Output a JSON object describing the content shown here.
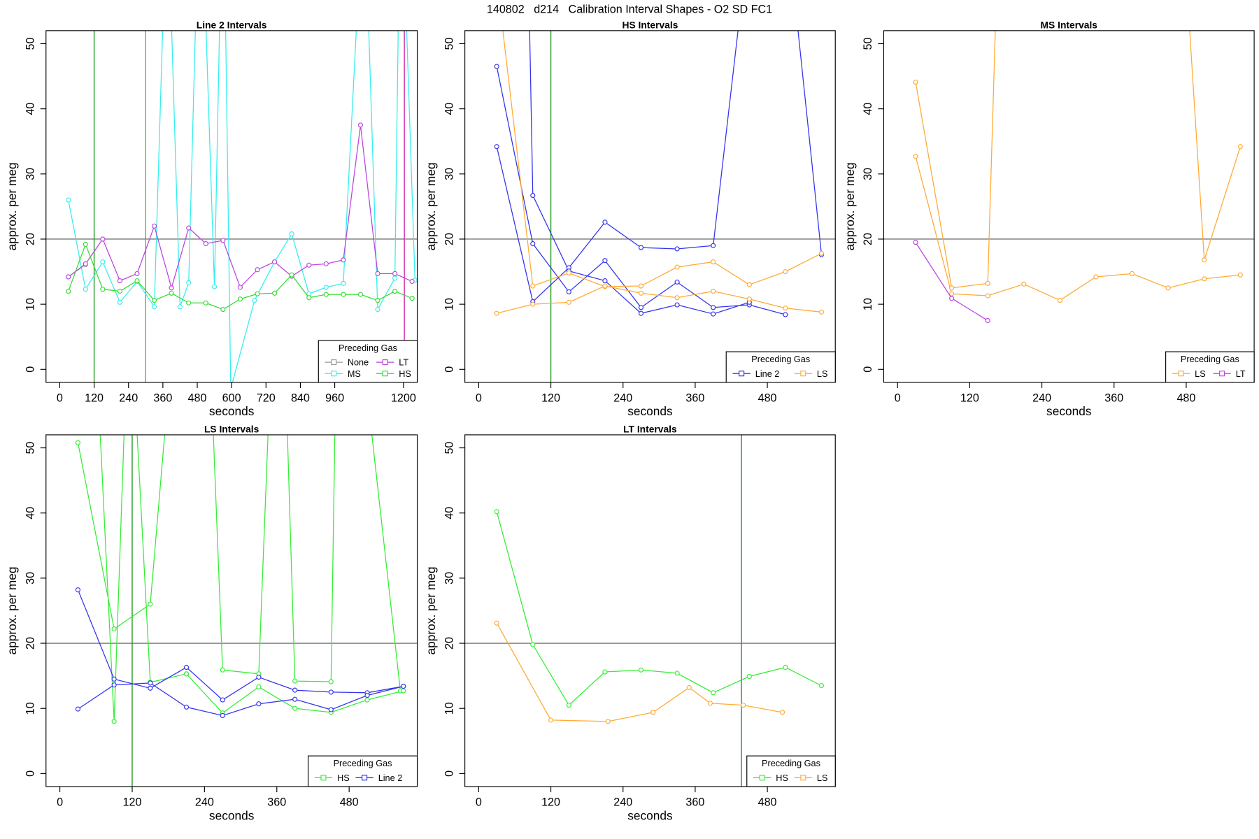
{
  "title": "140802   d214   Calibration Interval Shapes - O2 SD FC1",
  "chart_data": [
    {
      "type": "line",
      "title": "Line 2 Intervals",
      "x_label": "seconds",
      "y_label": "approx. per meg",
      "xlim": [
        -48,
        1248
      ],
      "ylim": [
        -2,
        52
      ],
      "xticks": [
        0,
        120,
        240,
        360,
        480,
        600,
        720,
        840,
        960,
        1200
      ],
      "yticks": [
        0,
        10,
        20,
        30,
        40,
        50
      ],
      "hline": 20,
      "hline_color": "#555555",
      "vlines": [
        {
          "x": 120,
          "color": "#229922"
        },
        {
          "x": 300,
          "color": "#33cc33"
        },
        {
          "x": 1203,
          "color": "#cc22aa"
        }
      ],
      "legend_title": "Preceding Gas",
      "legend": "bottomright",
      "series": [
        {
          "name": "None",
          "color": "#999999",
          "x": [
            30,
            90
          ],
          "values": [
            14.2,
            16.1
          ]
        },
        {
          "name": "MS",
          "color": "#33eeee",
          "x": [
            30,
            90,
            150,
            210,
            270,
            330,
            375,
            420,
            450,
            490,
            540,
            570,
            597,
            680,
            750,
            810,
            870,
            930,
            990,
            1062,
            1110,
            1170,
            1190,
            1240
          ],
          "values": [
            26,
            12.3,
            16.5,
            10.3,
            13.5,
            9.6,
            75,
            9.6,
            13.3,
            80,
            12.7,
            80,
            -3,
            10.6,
            16.5,
            20.8,
            11.6,
            12.6,
            13.2,
            75,
            9.2,
            14,
            80,
            13.7
          ]
        },
        {
          "name": "LT",
          "color": "#bb44dd",
          "x": [
            30,
            90,
            150,
            210,
            270,
            330,
            390,
            450,
            510,
            570,
            630,
            690,
            750,
            810,
            870,
            930,
            990,
            1050,
            1110,
            1170,
            1230
          ],
          "values": [
            14.2,
            16.2,
            20,
            13.6,
            14.7,
            22,
            12.5,
            21.7,
            19.3,
            19.8,
            12.6,
            15.3,
            16.5,
            14.3,
            16,
            16.2,
            16.8,
            37.5,
            14.7,
            14.7,
            13.5
          ]
        },
        {
          "name": "HS",
          "color": "#33dd33",
          "x": [
            30,
            90,
            150,
            210,
            270,
            330,
            390,
            450,
            510,
            570,
            630,
            690,
            750,
            810,
            870,
            930,
            990,
            1050,
            1110,
            1170,
            1230
          ],
          "values": [
            12,
            19.2,
            12.3,
            12,
            13.6,
            10.6,
            11.7,
            10.2,
            10.2,
            9.2,
            10.8,
            11.6,
            11.7,
            14.5,
            11,
            11.5,
            11.5,
            11.5,
            10.6,
            12,
            10.9
          ]
        }
      ]
    },
    {
      "type": "line",
      "title": "HS Intervals",
      "x_label": "seconds",
      "y_label": "approx. per meg",
      "xlim": [
        -23,
        593
      ],
      "ylim": [
        -2,
        52
      ],
      "xticks": [
        0,
        120,
        240,
        360,
        480
      ],
      "yticks": [
        0,
        10,
        20,
        30,
        40,
        50
      ],
      "hline": 20,
      "hline_color": "#555555",
      "vlines": [
        {
          "x": 120,
          "color": "#229922"
        }
      ],
      "legend_title": "Preceding Gas",
      "legend": "bottomright",
      "series": [
        {
          "name": "Line 2",
          "color": "#3333ee",
          "x": [
            30,
            90,
            150,
            210,
            270,
            330,
            390,
            450,
            510,
            null,
            30,
            90,
            150,
            210,
            270,
            330,
            390,
            460,
            505,
            570,
            null,
            80,
            90,
            150,
            210,
            270,
            330,
            390,
            450
          ],
          "values": [
            46.5,
            19.3,
            11.9,
            16.7,
            9.5,
            13.4,
            9.5,
            9.9,
            8.4,
            null,
            34.2,
            10.4,
            15.6,
            22.6,
            18.7,
            18.5,
            19,
            75,
            75,
            17.6,
            null,
            75,
            26.7,
            15.1,
            13.6,
            8.6,
            9.9,
            8.5,
            10.3
          ]
        },
        {
          "name": "LS",
          "color": "#ffaa33",
          "x": [
            30,
            90,
            150,
            210,
            270,
            330,
            390,
            450,
            510,
            570,
            null,
            30,
            90,
            150,
            210,
            270,
            330,
            390,
            450,
            510,
            570
          ],
          "values": [
            60,
            12.8,
            14.8,
            12.7,
            12.8,
            15.7,
            16.5,
            13,
            15,
            17.8,
            null,
            8.6,
            10,
            10.3,
            12.8,
            11.7,
            11,
            12,
            10.8,
            9.4,
            8.8
          ]
        }
      ]
    },
    {
      "type": "line",
      "title": "MS Intervals",
      "x_label": "seconds",
      "y_label": "approx. per meg",
      "xlim": [
        -23,
        593
      ],
      "ylim": [
        -2,
        52
      ],
      "xticks": [
        0,
        120,
        240,
        360,
        480
      ],
      "yticks": [
        0,
        10,
        20,
        30,
        40,
        50
      ],
      "hline": 20,
      "hline_color": "#555555",
      "legend_title": "Preceding Gas",
      "legend": "bottomright",
      "series": [
        {
          "name": "LS",
          "color": "#ffaa33",
          "x": [
            30,
            90,
            150,
            170,
            470,
            510,
            570,
            null,
            30,
            90,
            150,
            210,
            270,
            330,
            390,
            450,
            510,
            570
          ],
          "values": [
            44.1,
            12.5,
            13.2,
            75,
            75,
            16.8,
            34.2,
            null,
            32.7,
            11.6,
            11.3,
            13.1,
            10.6,
            14.2,
            14.7,
            12.5,
            13.9,
            14.5
          ]
        },
        {
          "name": "LT",
          "color": "#bb44dd",
          "x": [
            30,
            90,
            150
          ],
          "values": [
            19.5,
            10.9,
            7.5
          ]
        }
      ]
    },
    {
      "type": "line",
      "title": "LS Intervals",
      "x_label": "seconds",
      "y_label": "approx. per meg",
      "xlim": [
        -23,
        593
      ],
      "ylim": [
        -2,
        52
      ],
      "xticks": [
        0,
        120,
        240,
        360,
        480
      ],
      "yticks": [
        0,
        10,
        20,
        30,
        40,
        50
      ],
      "hline": 20,
      "hline_color": "#555555",
      "vlines": [
        {
          "x": 120,
          "color": "#229922"
        }
      ],
      "legend_title": "Preceding Gas",
      "legend": "bottomright",
      "series": [
        {
          "name": "HS",
          "color": "#33ee33",
          "x": [
            30,
            90,
            150,
            195,
            245,
            270,
            330,
            355,
            370,
            390,
            450,
            460,
            490,
            565,
            null,
            55,
            90,
            115,
            150,
            210,
            270,
            330,
            390,
            450,
            510,
            570
          ],
          "values": [
            50.8,
            22.2,
            26,
            75,
            75,
            15.9,
            15.3,
            75,
            75,
            14.2,
            14.1,
            75,
            75,
            12.7,
            null,
            75,
            8,
            75,
            14,
            15.3,
            9.3,
            13.3,
            10,
            9.4,
            11.3,
            12.7
          ]
        },
        {
          "name": "Line 2",
          "color": "#3333ee",
          "x": [
            30,
            90,
            150,
            210,
            270,
            330,
            390,
            450,
            510,
            570,
            null,
            30,
            90,
            150,
            210,
            270,
            330,
            390,
            450,
            510,
            570
          ],
          "values": [
            28.2,
            14.5,
            13.1,
            16.3,
            11.3,
            14.8,
            12.8,
            12.5,
            12.4,
            13.4,
            null,
            9.9,
            13.6,
            13.9,
            10.2,
            8.9,
            10.7,
            11.4,
            9.8,
            12,
            13.4
          ]
        }
      ]
    },
    {
      "type": "line",
      "title": "LT Intervals",
      "x_label": "seconds",
      "y_label": "approx. per meg",
      "xlim": [
        -23,
        593
      ],
      "ylim": [
        -2,
        52
      ],
      "xticks": [
        0,
        120,
        240,
        360,
        480
      ],
      "yticks": [
        0,
        10,
        20,
        30,
        40,
        50
      ],
      "hline": 20,
      "hline_color": "#555555",
      "vlines": [
        {
          "x": 437,
          "color": "#229922"
        }
      ],
      "legend_title": "Preceding Gas",
      "legend": "bottomright",
      "series": [
        {
          "name": "HS",
          "color": "#33ee33",
          "x": [
            30,
            90,
            150,
            210,
            270,
            330,
            390,
            450,
            510,
            570
          ],
          "values": [
            40.2,
            19.8,
            10.5,
            15.6,
            15.9,
            15.4,
            12.4,
            14.9,
            16.3,
            13.5
          ]
        },
        {
          "name": "LS",
          "color": "#ffaa33",
          "x": [
            30,
            120,
            215,
            290,
            350,
            385,
            440,
            505
          ],
          "values": [
            23.1,
            8.2,
            8,
            9.4,
            13.2,
            10.8,
            10.5,
            9.4
          ]
        }
      ]
    }
  ]
}
